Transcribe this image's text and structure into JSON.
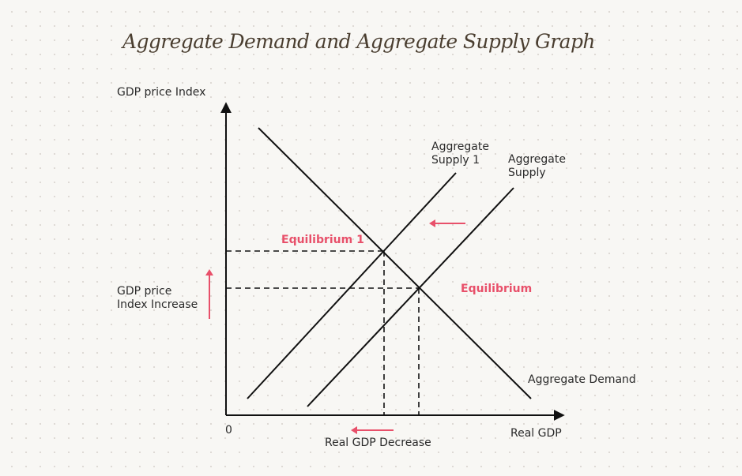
{
  "title": "Aggregate Demand and Aggregate Supply Graph",
  "axes": {
    "y_label": "GDP price Index",
    "x_label": "Real GDP",
    "origin_label": "0"
  },
  "curves": {
    "aggregate_supply_1": {
      "line1": "Aggregate",
      "line2": "Supply 1"
    },
    "aggregate_supply": {
      "line1": "Aggregate",
      "line2": "Supply"
    },
    "aggregate_demand": "Aggregate Demand"
  },
  "points": {
    "equilibrium_1": "Equilibrium 1",
    "equilibrium": "Equilibrium"
  },
  "annotations": {
    "price_increase": {
      "line1": "GDP price",
      "line2": "Index Increase"
    },
    "gdp_decrease": "Real GDP Decrease"
  },
  "colors": {
    "ink": "#111111",
    "accent": "#e8506a",
    "title": "#4a3e30",
    "background": "#f8f7f4"
  }
}
